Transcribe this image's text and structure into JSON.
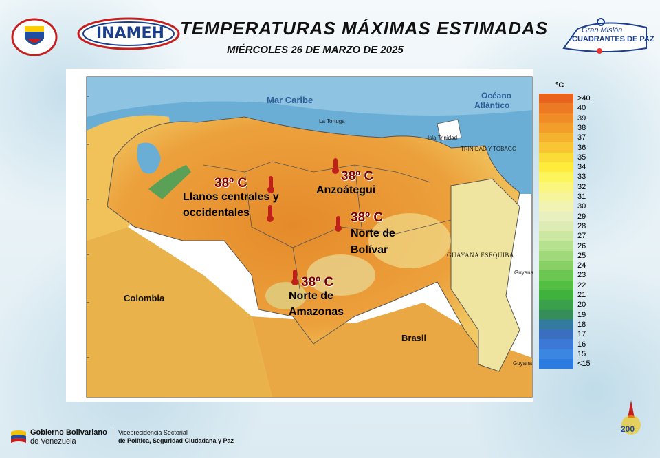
{
  "header": {
    "title": "TEMPERATURAS MÁXIMAS ESTIMADAS",
    "date": "MIÉRCOLES 26 DE MARZO DE 2025",
    "inameh_logo_text": "INAMEH",
    "gran_mision_line1": "Gran Misión",
    "gran_mision_line2": "CUADRANTES DE PAZ"
  },
  "map": {
    "sea_labels": [
      "Mar Caribe",
      "Océano",
      "Atlántico"
    ],
    "country_labels": [
      "Colombia",
      "Brasil"
    ],
    "small_labels": [
      "TRINIDAD Y TOBAGO",
      "Isla Trinidad",
      "La Tortuga",
      "Guyana",
      "Guyana"
    ],
    "esequiba_label": "GUAYANA ESEQUIBA",
    "hotspots": [
      {
        "temp": "38º C",
        "region_line1": "Llanos centrales y",
        "region_line2": "occidentales"
      },
      {
        "temp": "38º C",
        "region_line1": "Anzoátegui",
        "region_line2": ""
      },
      {
        "temp": "38º C",
        "region_line1": "Norte de",
        "region_line2": "Bolívar"
      },
      {
        "temp": "38º C",
        "region_line1": "Norte de",
        "region_line2": "Amazonas"
      }
    ],
    "colors": {
      "ocean": "#6aaed6",
      "hot": "#e8962e",
      "warm": "#f2c25a",
      "mild": "#f1e69a",
      "highland": "#d8dc9a",
      "marker": "#c0201a"
    }
  },
  "legend": {
    "unit": "°C",
    "labels": [
      ">40",
      "40",
      "39",
      "38",
      "37",
      "36",
      "35",
      "34",
      "33",
      "32",
      "31",
      "30",
      "29",
      "28",
      "27",
      "26",
      "25",
      "24",
      "23",
      "22",
      "21",
      "20",
      "19",
      "18",
      "17",
      "16",
      "15",
      "<15"
    ],
    "colors": [
      "#e8641e",
      "#ec7a22",
      "#ef8c26",
      "#f29e2a",
      "#f5b22e",
      "#f8c632",
      "#fbdb36",
      "#fdec3c",
      "#fdf55c",
      "#fbf77e",
      "#f7f59c",
      "#f1f3b4",
      "#e9f0c0",
      "#dcecb4",
      "#cbe7a2",
      "#b6e18e",
      "#9fd97a",
      "#86d066",
      "#6cc752",
      "#52be42",
      "#3fb23e",
      "#3aa04c",
      "#368d5c",
      "#3479a0",
      "#3a6fc0",
      "#3c78d6",
      "#3b86e0",
      "#2c7be0"
    ]
  },
  "footer": {
    "gov_line1": "Gobierno Bolivariano",
    "gov_line2": "de Venezuela",
    "vice_line1": "Vicepresidencia Sectorial",
    "vice_line2": "de Política, Seguridad Ciudadana y Paz"
  }
}
